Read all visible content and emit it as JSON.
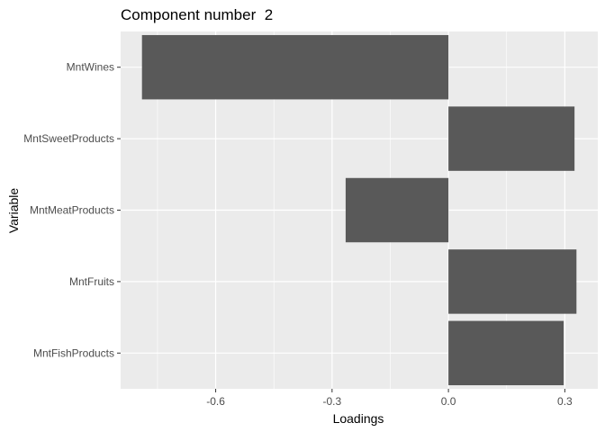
{
  "chart_data": {
    "type": "bar",
    "orientation": "horizontal",
    "title": "Component number  2",
    "xlabel": "Loadings",
    "ylabel": "Variable",
    "categories": [
      "MntWines",
      "MntSweetProducts",
      "MntMeatProducts",
      "MntFruits",
      "MntFishProducts"
    ],
    "values": [
      -0.79,
      0.325,
      -0.265,
      0.33,
      0.297
    ],
    "xlim": [
      -0.845,
      0.385
    ],
    "x_ticks": [
      -0.6,
      -0.3,
      0.0,
      0.3
    ],
    "x_tick_labels": [
      "-0.6",
      "-0.3",
      "0.0",
      "0.3"
    ],
    "grid": true,
    "colors": {
      "panel": "#ebebeb",
      "bar": "#595959",
      "grid": "#ffffff"
    }
  }
}
